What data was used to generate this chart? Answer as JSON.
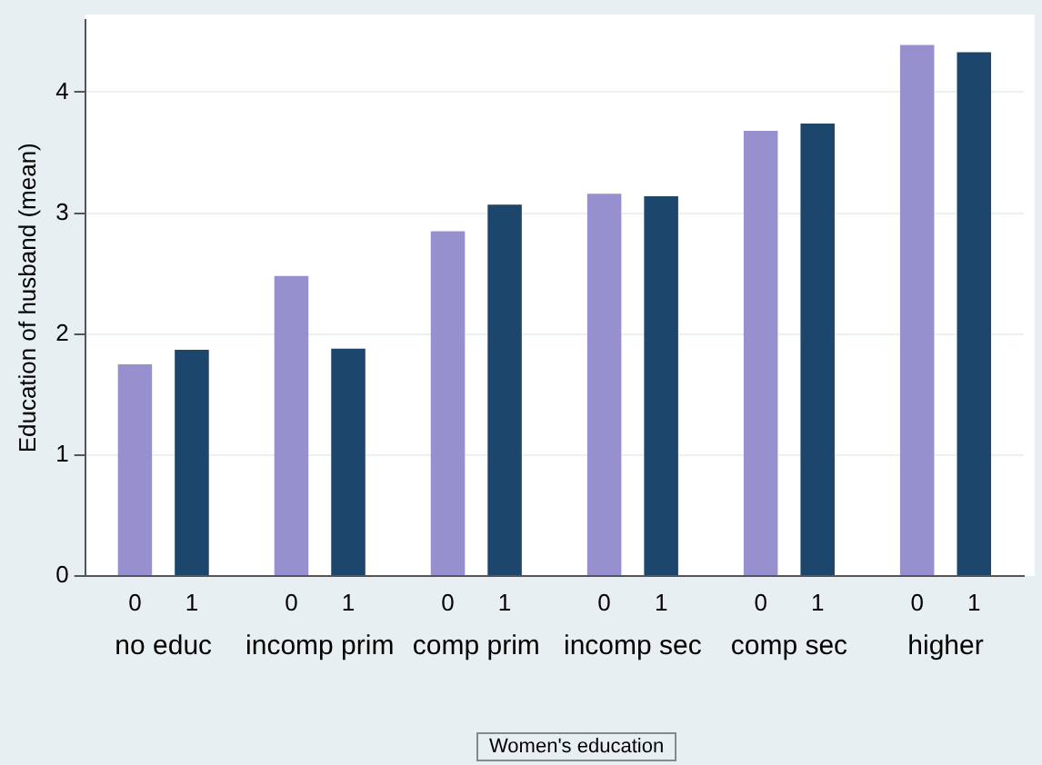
{
  "chart_data": {
    "type": "bar",
    "xlabel": "Women's education",
    "ylabel": "Education of husband (mean)",
    "categories": [
      "no educ",
      "incomp prim",
      "comp prim",
      "incomp sec",
      "comp sec",
      "higher"
    ],
    "series": [
      {
        "name": "0",
        "color": "#9690cf",
        "values": [
          1.75,
          2.48,
          2.85,
          3.16,
          3.68,
          4.39
        ]
      },
      {
        "name": "1",
        "color": "#1c466b",
        "values": [
          1.87,
          1.88,
          3.07,
          3.14,
          3.74,
          4.33
        ]
      }
    ],
    "ylim": [
      0,
      4.6
    ],
    "yticks": [
      0,
      1,
      2,
      3,
      4
    ],
    "grid": "y",
    "legend": false
  }
}
